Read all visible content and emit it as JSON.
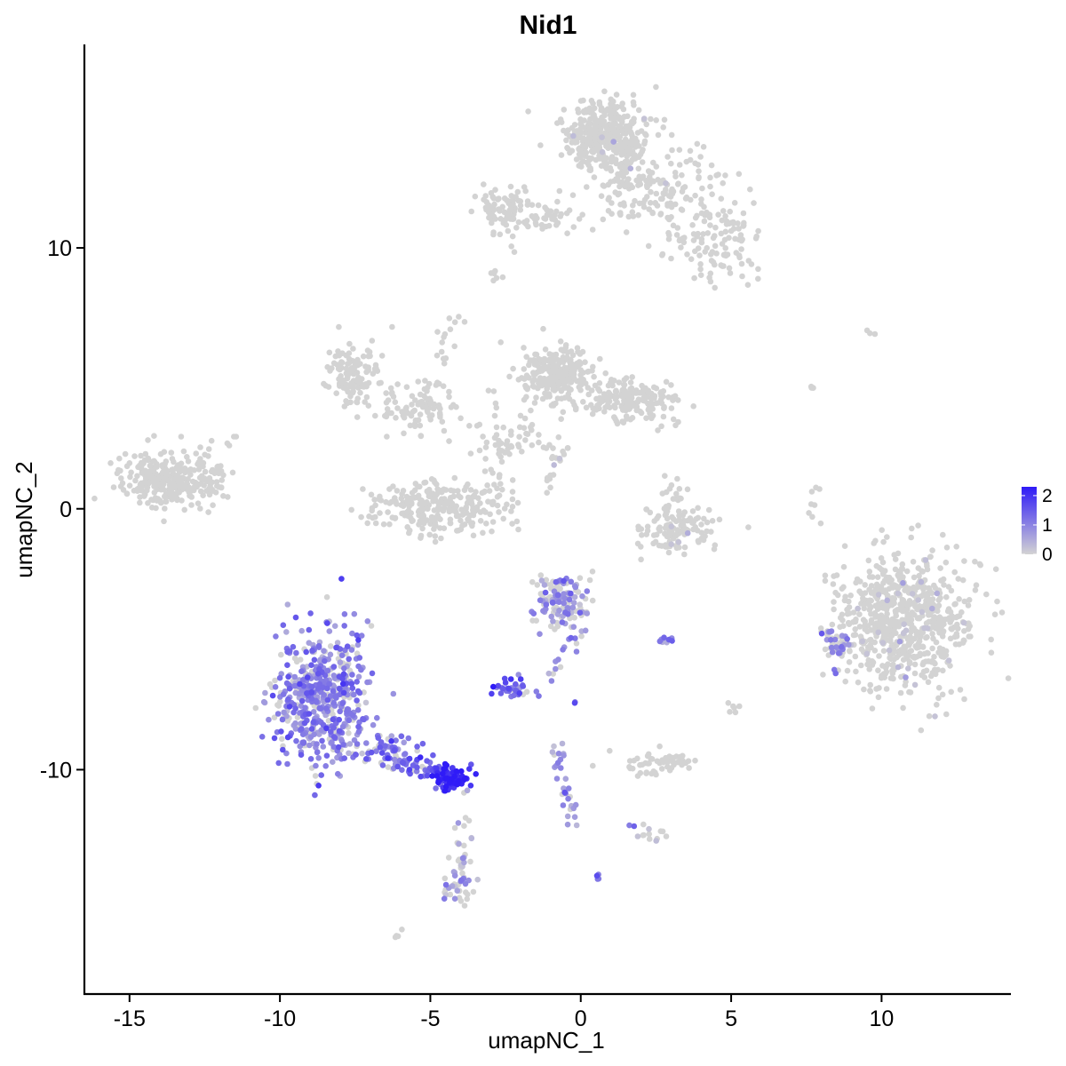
{
  "chart_data": {
    "type": "scatter",
    "title": "Nid1",
    "xlabel": "umapNC_1",
    "ylabel": "umapNC_2",
    "xlim": [
      -16.5,
      14.3
    ],
    "ylim": [
      -18.6,
      17.8
    ],
    "x_ticks": [
      -15,
      -10,
      -5,
      0,
      5,
      10
    ],
    "y_ticks": [
      -10,
      0,
      10
    ],
    "grid": false,
    "legend": {
      "position": "right",
      "type": "colorbar",
      "ticks": [
        2,
        1,
        0
      ],
      "min": 0,
      "max": 2.3,
      "low_color": "#d3d3d3",
      "high_color": "#2f1bf7"
    },
    "clusters": [
      {
        "cx": 0.8,
        "cy": 14.3,
        "sx": 0.75,
        "sy": 0.75,
        "n": 420,
        "expr": 0.0,
        "expr_frac": 0.01
      },
      {
        "cx": 2.5,
        "cy": 12.3,
        "sx": 1.3,
        "sy": 0.9,
        "n": 160,
        "expr": 0.0,
        "expr_frac": 0.01
      },
      {
        "cx": 4.6,
        "cy": 10.2,
        "sx": 0.9,
        "sy": 0.9,
        "n": 110,
        "expr": 0.0,
        "expr_frac": 0.0
      },
      {
        "cx": -2.5,
        "cy": 11.5,
        "sx": 0.5,
        "sy": 0.6,
        "n": 80,
        "expr": 0.0,
        "expr_frac": 0.01
      },
      {
        "cx": -0.8,
        "cy": 11.2,
        "sx": 0.8,
        "sy": 0.3,
        "n": 40,
        "expr": 0.0,
        "expr_frac": 0.0
      },
      {
        "cx": -7.5,
        "cy": 5.2,
        "sx": 0.5,
        "sy": 0.7,
        "n": 120,
        "expr": 0.0,
        "expr_frac": 0.0
      },
      {
        "cx": -5.5,
        "cy": 4.0,
        "sx": 0.9,
        "sy": 0.6,
        "n": 90,
        "expr": 0.0,
        "expr_frac": 0.0
      },
      {
        "cx": -0.8,
        "cy": 5.2,
        "sx": 0.6,
        "sy": 0.6,
        "n": 260,
        "expr": 0.0,
        "expr_frac": 0.0
      },
      {
        "cx": 1.5,
        "cy": 4.2,
        "sx": 1.0,
        "sy": 0.5,
        "n": 180,
        "expr": 0.0,
        "expr_frac": 0.01
      },
      {
        "cx": -4.8,
        "cy": 0.1,
        "sx": 1.3,
        "sy": 0.6,
        "n": 260,
        "expr": 0.0,
        "expr_frac": 0.0
      },
      {
        "cx": -2.2,
        "cy": 2.8,
        "sx": 1.0,
        "sy": 0.8,
        "n": 60,
        "expr": 0.0,
        "expr_frac": 0.01
      },
      {
        "cx": -13.8,
        "cy": 1.2,
        "sx": 0.9,
        "sy": 0.65,
        "n": 260,
        "expr": 0.0,
        "expr_frac": 0.0
      },
      {
        "cx": -12.2,
        "cy": 1.0,
        "sx": 0.4,
        "sy": 0.6,
        "n": 35,
        "expr": 0.0,
        "expr_frac": 0.0
      },
      {
        "cx": 3.2,
        "cy": -0.8,
        "sx": 0.8,
        "sy": 0.5,
        "n": 110,
        "expr": 0.0,
        "expr_frac": 0.01
      },
      {
        "cx": 10.7,
        "cy": -4.3,
        "sx": 1.3,
        "sy": 1.6,
        "n": 700,
        "expr": 0.0,
        "expr_frac": 0.05
      },
      {
        "cx": 8.6,
        "cy": -5.3,
        "sx": 0.3,
        "sy": 0.6,
        "n": 40,
        "expr": 0.9,
        "expr_frac": 0.6
      },
      {
        "cx": -0.6,
        "cy": -3.5,
        "sx": 0.55,
        "sy": 0.6,
        "n": 140,
        "expr": 0.9,
        "expr_frac": 0.5
      },
      {
        "cx": -8.6,
        "cy": -7.3,
        "sx": 0.95,
        "sy": 1.5,
        "n": 520,
        "expr": 1.0,
        "expr_frac": 0.8
      },
      {
        "cx": -6.5,
        "cy": -9.2,
        "sx": 0.7,
        "sy": 0.4,
        "n": 60,
        "expr": 1.2,
        "expr_frac": 0.8
      },
      {
        "cx": -4.3,
        "cy": -10.3,
        "sx": 0.35,
        "sy": 0.25,
        "n": 90,
        "expr": 2.2,
        "expr_frac": 1.0
      },
      {
        "cx": -2.3,
        "cy": -6.9,
        "sx": 0.35,
        "sy": 0.2,
        "n": 35,
        "expr": 1.3,
        "expr_frac": 0.9
      },
      {
        "cx": 2.6,
        "cy": -9.7,
        "sx": 0.7,
        "sy": 0.25,
        "n": 60,
        "expr": 0.0,
        "expr_frac": 0.0
      },
      {
        "cx": -4.0,
        "cy": -14.2,
        "sx": 0.3,
        "sy": 0.7,
        "n": 35,
        "expr": 0.8,
        "expr_frac": 0.5
      },
      {
        "cx": 2.4,
        "cy": -12.5,
        "sx": 0.3,
        "sy": 0.2,
        "n": 12,
        "expr": 0.3,
        "expr_frac": 0.3
      },
      {
        "cx": 2.8,
        "cy": -5.0,
        "sx": 0.25,
        "sy": 0.1,
        "n": 8,
        "expr": 1.0,
        "expr_frac": 0.8
      }
    ],
    "trails": [
      {
        "from": [
          -6.2,
          -9.6
        ],
        "to": [
          -4.5,
          -10.2
        ],
        "n": 45,
        "spread": 0.25,
        "expr": 1.3,
        "expr_frac": 0.9
      },
      {
        "from": [
          0.2,
          -4.5
        ],
        "to": [
          -1.5,
          -7.0
        ],
        "n": 18,
        "spread": 0.15,
        "expr": 0.9,
        "expr_frac": 0.8
      },
      {
        "from": [
          -0.8,
          -9.2
        ],
        "to": [
          -0.3,
          -12.0
        ],
        "n": 30,
        "spread": 0.15,
        "expr": 0.8,
        "expr_frac": 0.8
      },
      {
        "from": [
          -4.0,
          -11.0
        ],
        "to": [
          -3.8,
          -15.0
        ],
        "n": 25,
        "spread": 0.25,
        "expr": 0.5,
        "expr_frac": 0.4
      },
      {
        "from": [
          -5.2,
          3.5
        ],
        "to": [
          -4.1,
          7.5
        ],
        "n": 22,
        "spread": 0.2,
        "expr": 0.0,
        "expr_frac": 0.0
      },
      {
        "from": [
          -3.3,
          3.2
        ],
        "to": [
          -2.2,
          -0.8
        ],
        "n": 22,
        "spread": 0.2,
        "expr": 0.0,
        "expr_frac": 0.02
      },
      {
        "from": [
          1.2,
          11.5
        ],
        "to": [
          1.3,
          13.0
        ],
        "n": 20,
        "spread": 0.2,
        "expr": 0.0,
        "expr_frac": 0.0
      },
      {
        "from": [
          -0.5,
          2.5
        ],
        "to": [
          -1.2,
          0.9
        ],
        "n": 12,
        "spread": 0.15,
        "expr": 0.0,
        "expr_frac": 0.1
      },
      {
        "from": [
          3.2,
          1.2
        ],
        "to": [
          3.0,
          -0.8
        ],
        "n": 25,
        "spread": 0.2,
        "expr": 0.0,
        "expr_frac": 0.0
      },
      {
        "from": [
          7.8,
          1.0
        ],
        "to": [
          7.8,
          -0.8
        ],
        "n": 8,
        "spread": 0.1,
        "expr": 0.0,
        "expr_frac": 0.0
      },
      {
        "from": [
          -3.0,
          9.0
        ],
        "to": [
          -2.6,
          8.9
        ],
        "n": 6,
        "spread": 0.1,
        "expr": 0.0,
        "expr_frac": 0.0
      },
      {
        "from": [
          5.0,
          -7.5
        ],
        "to": [
          5.1,
          -8.0
        ],
        "n": 6,
        "spread": 0.1,
        "expr": 0.0,
        "expr_frac": 0.0
      },
      {
        "from": [
          -6.0,
          -16.2
        ],
        "to": [
          -6.2,
          -16.4
        ],
        "n": 4,
        "spread": 0.05,
        "expr": 0.0,
        "expr_frac": 0.0
      },
      {
        "from": [
          0.5,
          -14.0
        ],
        "to": [
          0.6,
          -14.1
        ],
        "n": 4,
        "spread": 0.05,
        "expr": 1.0,
        "expr_frac": 1.0
      },
      {
        "from": [
          9.5,
          6.7
        ],
        "to": [
          9.9,
          6.8
        ],
        "n": 3,
        "spread": 0.05,
        "expr": 0.0,
        "expr_frac": 0.0
      },
      {
        "from": [
          7.7,
          4.8
        ],
        "to": [
          7.8,
          4.5
        ],
        "n": 3,
        "spread": 0.05,
        "expr": 0.0,
        "expr_frac": 0.0
      },
      {
        "from": [
          -11.5,
          2.8
        ],
        "to": [
          -11.9,
          2.4
        ],
        "n": 4,
        "spread": 0.05,
        "expr": 0.0,
        "expr_frac": 0.0
      },
      {
        "from": [
          -0.2,
          -7.5
        ],
        "to": [
          -0.2,
          -7.4
        ],
        "n": 2,
        "spread": 0.05,
        "expr": 1.0,
        "expr_frac": 1.0
      },
      {
        "from": [
          1.7,
          -12.1
        ],
        "to": [
          1.7,
          -12.1
        ],
        "n": 2,
        "spread": 0.05,
        "expr": 1.0,
        "expr_frac": 1.0
      }
    ]
  }
}
